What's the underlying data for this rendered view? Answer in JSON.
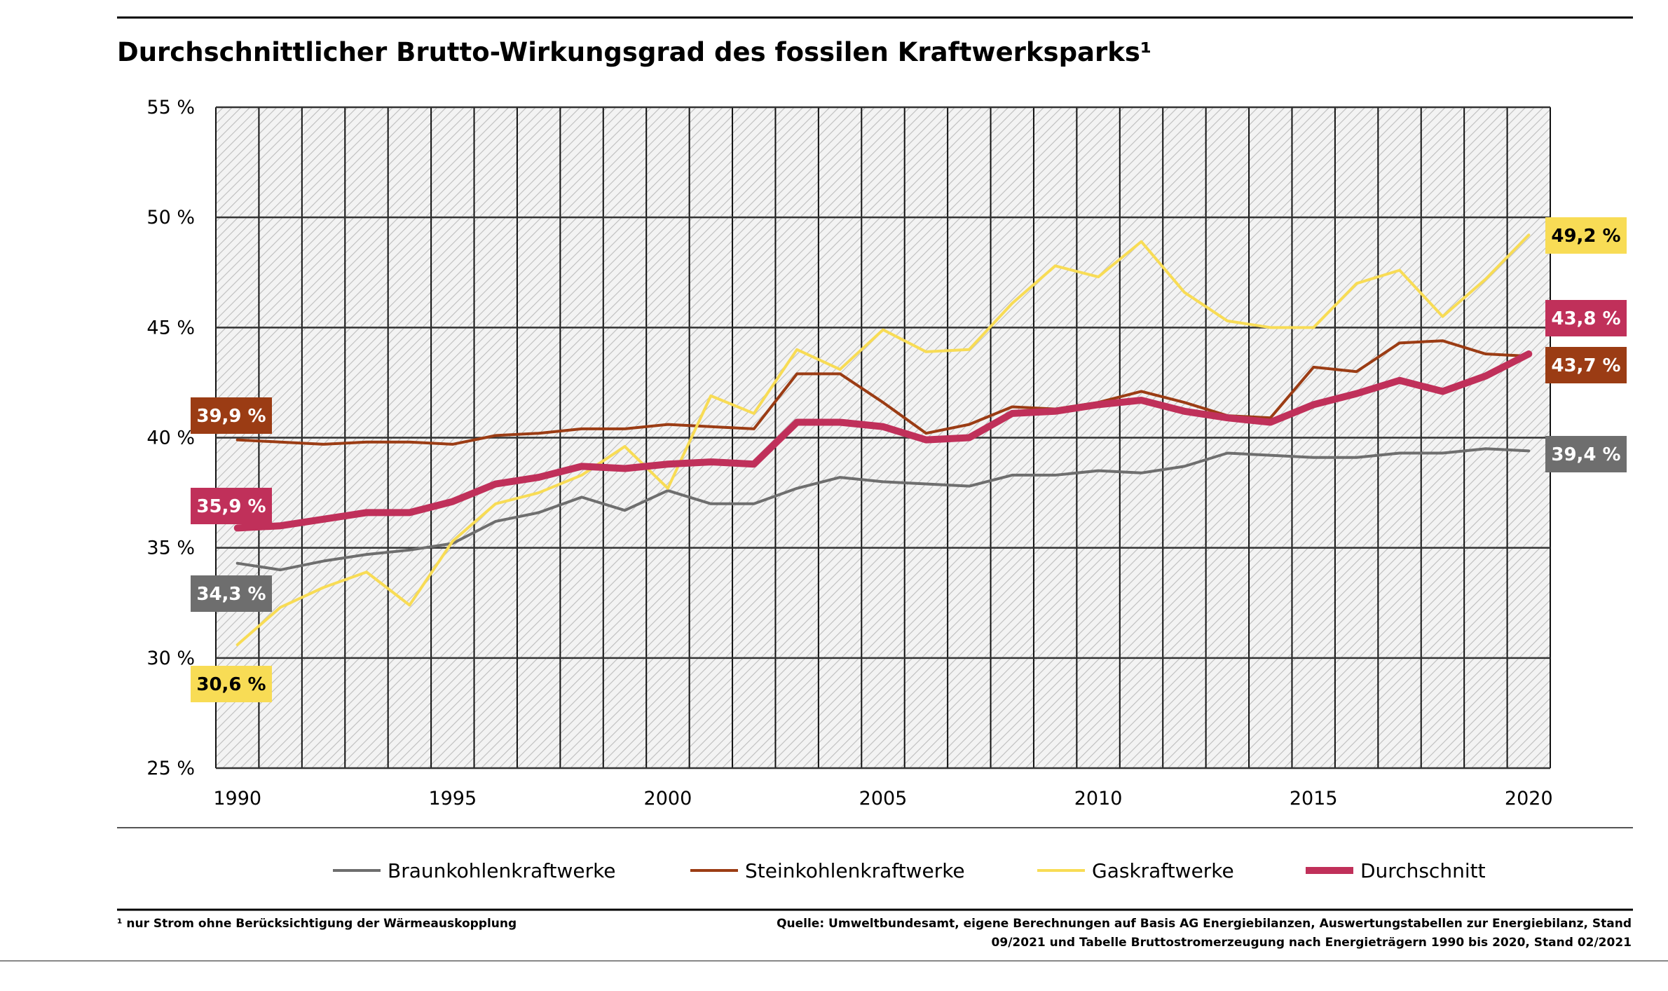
{
  "chart_data": {
    "type": "line",
    "title": "Durchschnittlicher Brutto-Wirkungsgrad des fossilen Kraftwerksparks¹",
    "xlabel": "",
    "ylabel": "",
    "xlim": [
      1989.5,
      2020.5
    ],
    "ylim": [
      25,
      55
    ],
    "grid": true,
    "legend_position": "bottom",
    "x_ticks": [
      1990,
      1995,
      2000,
      2005,
      2010,
      2015,
      2020
    ],
    "y_ticks": [
      "25 %",
      "30 %",
      "35 %",
      "40 %",
      "45 %",
      "50 %",
      "55 %"
    ],
    "y_tick_values": [
      25,
      30,
      35,
      40,
      45,
      50,
      55
    ],
    "x": [
      1990,
      1991,
      1992,
      1993,
      1994,
      1995,
      1996,
      1997,
      1998,
      1999,
      2000,
      2001,
      2002,
      2003,
      2004,
      2005,
      2006,
      2007,
      2008,
      2009,
      2010,
      2011,
      2012,
      2013,
      2014,
      2015,
      2016,
      2017,
      2018,
      2019,
      2020
    ],
    "series": [
      {
        "name": "Braunkohlenkraftwerke",
        "color": "#6e6e6e",
        "width": 4,
        "values": [
          34.3,
          34.0,
          34.4,
          34.7,
          34.9,
          35.2,
          36.2,
          36.6,
          37.3,
          36.7,
          37.6,
          37.0,
          37.0,
          37.7,
          38.2,
          38.0,
          37.9,
          37.8,
          38.3,
          38.3,
          38.5,
          38.4,
          38.7,
          39.3,
          39.2,
          39.1,
          39.1,
          39.3,
          39.3,
          39.5,
          39.4
        ],
        "start_label": "34,3 %",
        "end_label": "39,4 %",
        "label_text_color": "#ffffff"
      },
      {
        "name": "Steinkohlenkraftwerke",
        "color": "#9b3c14",
        "width": 4,
        "values": [
          39.9,
          39.8,
          39.7,
          39.8,
          39.8,
          39.7,
          40.1,
          40.2,
          40.4,
          40.4,
          40.6,
          40.5,
          40.4,
          42.9,
          42.9,
          41.6,
          40.2,
          40.6,
          41.4,
          41.3,
          41.6,
          42.1,
          41.6,
          41.0,
          40.9,
          43.2,
          43.0,
          44.3,
          44.4,
          43.8,
          43.7
        ],
        "start_label": "39,9 %",
        "end_label": "43,7 %",
        "label_text_color": "#ffffff"
      },
      {
        "name": "Gaskraftwerke",
        "color": "#f8dc55",
        "width": 4,
        "values": [
          30.6,
          32.3,
          33.2,
          33.9,
          32.4,
          35.3,
          37.0,
          37.5,
          38.3,
          39.6,
          37.7,
          41.9,
          41.1,
          44.0,
          43.1,
          44.9,
          43.9,
          44.0,
          46.1,
          47.8,
          47.3,
          48.9,
          46.6,
          45.3,
          45.0,
          45.0,
          47.0,
          47.6,
          45.5,
          47.2,
          49.2
        ],
        "start_label": "30,6 %",
        "end_label": "49,2 %",
        "label_text_color": "#000000"
      },
      {
        "name": "Durchschnitt",
        "color": "#c0305a",
        "width": 10,
        "values": [
          35.9,
          36.0,
          36.3,
          36.6,
          36.6,
          37.1,
          37.9,
          38.2,
          38.7,
          38.6,
          38.8,
          38.9,
          38.8,
          40.7,
          40.7,
          40.5,
          39.9,
          40.0,
          41.1,
          41.2,
          41.5,
          41.7,
          41.2,
          40.9,
          40.7,
          41.5,
          42.0,
          42.6,
          42.1,
          42.8,
          43.8
        ],
        "start_label": "35,9 %",
        "end_label": "43,8 %",
        "label_text_color": "#ffffff"
      }
    ]
  },
  "footnote": "¹ nur Strom ohne Berücksichtigung der Wärmeauskopplung",
  "source_line1": "Quelle: Umweltbundesamt, eigene Berechnungen auf Basis AG Energiebilanzen, Auswertungstabellen zur Energiebilanz, Stand",
  "source_line2": "09/2021 und Tabelle Bruttostromerzeugung nach Energieträgern 1990 bis 2020, Stand 02/2021"
}
